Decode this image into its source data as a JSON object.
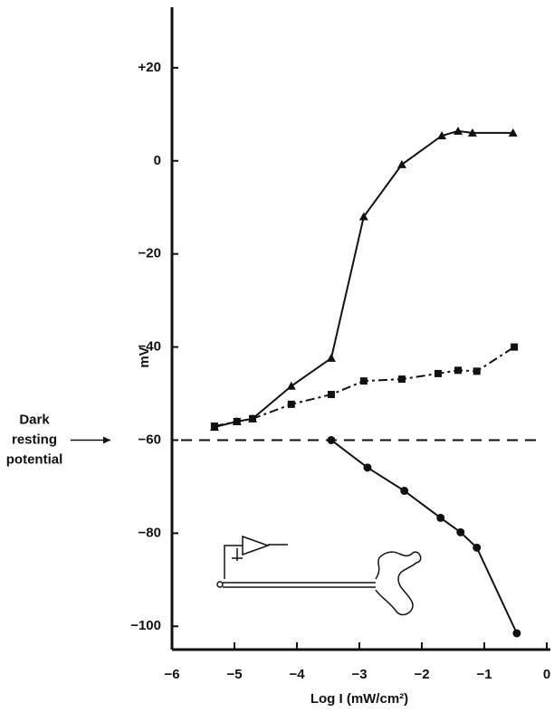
{
  "chart_data": {
    "type": "line",
    "y_label": "mV",
    "x_label": "Log I (mW/cm²)",
    "xlim": [
      -6,
      0
    ],
    "ylim": [
      -105,
      33
    ],
    "xticks": [
      {
        "value": -6,
        "label": "−6"
      },
      {
        "value": -5,
        "label": "−5"
      },
      {
        "value": -4,
        "label": "−4"
      },
      {
        "value": -3,
        "label": "−3"
      },
      {
        "value": -2,
        "label": "−2"
      },
      {
        "value": -1,
        "label": "−1"
      },
      0
    ],
    "yticks": [
      {
        "value": 20,
        "label": "+20"
      },
      0,
      {
        "value": -20,
        "label": "−20"
      },
      {
        "value": -40,
        "label": "−40"
      },
      {
        "value": -60,
        "label": "−60"
      },
      {
        "value": -80,
        "label": "−80"
      },
      {
        "value": -100,
        "label": "−100"
      }
    ],
    "reference_y": -60,
    "annotation": [
      "Dark",
      "resting",
      "potential"
    ],
    "series": [
      {
        "marker": "triangle",
        "dash": "solid",
        "color": "#111",
        "x": [
          -5.32,
          -4.96,
          -4.71,
          -4.09,
          -3.45,
          -2.93,
          -2.32,
          -1.68,
          -1.42,
          -1.19,
          -0.54
        ],
        "values": [
          -57.2,
          -56,
          -55.4,
          -48.4,
          -42.4,
          -12,
          -0.8,
          5.4,
          6.4,
          6,
          6
        ]
      },
      {
        "marker": "square",
        "dash": "dashdot",
        "color": "#111",
        "x": [
          -5.32,
          -4.96,
          -4.71,
          -4.09,
          -3.45,
          -2.93,
          -2.32,
          -1.74,
          -1.42,
          -1.12,
          -0.52
        ],
        "values": [
          -57,
          -56,
          -55.4,
          -52.3,
          -50.2,
          -47.3,
          -46.9,
          -45.7,
          -45,
          -45.2,
          -40
        ]
      },
      {
        "marker": "circle",
        "dash": "solid",
        "color": "#111",
        "x": [
          -3.45,
          -2.87,
          -2.28,
          -1.7,
          -1.38,
          -1.12,
          -0.48
        ],
        "values": [
          -60,
          -65.9,
          -70.9,
          -76.7,
          -79.8,
          -83.1,
          -101.5
        ]
      }
    ]
  }
}
